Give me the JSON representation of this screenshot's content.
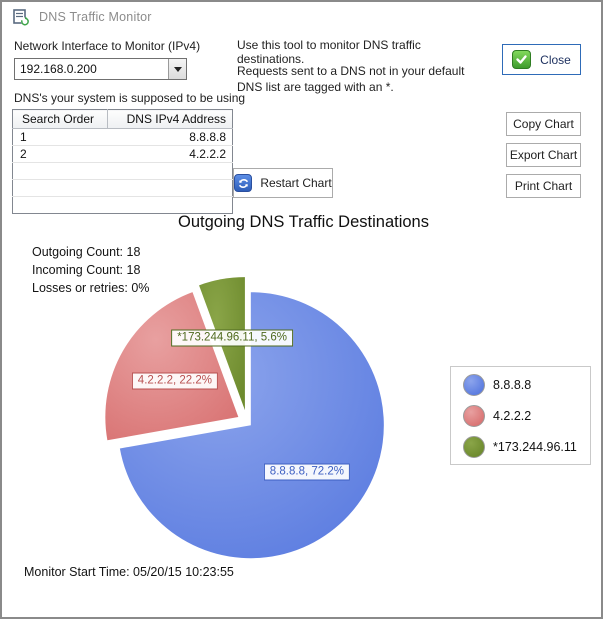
{
  "window": {
    "title": "DNS Traffic Monitor"
  },
  "interface": {
    "label": "Network Interface to Monitor (IPv4)",
    "value": "192.168.0.200"
  },
  "dns_list": {
    "label": "DNS's your system is supposed to be using",
    "columns": [
      "Search Order",
      "DNS IPv4 Address"
    ],
    "rows": [
      [
        "1",
        "8.8.8.8"
      ],
      [
        "2",
        "4.2.2.2"
      ]
    ],
    "empty_rows": 3
  },
  "instructions": {
    "line1": "Use this tool to monitor DNS traffic destinations.",
    "line2": "Requests sent to a DNS not in your default DNS list are tagged with an *."
  },
  "buttons": {
    "close": "Close",
    "copy": "Copy Chart",
    "export": "Export Chart",
    "print": "Print Chart",
    "restart": "Restart Chart"
  },
  "chart_data": {
    "type": "pie",
    "title": "Outgoing DNS Traffic Destinations",
    "stats": [
      "Outgoing Count: 18",
      "Incoming Count: 18",
      "Losses or retries: 0%"
    ],
    "slices": [
      {
        "name": "8.8.8.8",
        "percent": 72.2,
        "color": "#5b7ce0",
        "light": "#8ca4ec",
        "dark": "#3d5fc2"
      },
      {
        "name": "4.2.2.2",
        "percent": 22.2,
        "color": "#d97474",
        "light": "#e8a0a0",
        "dark": "#b85050"
      },
      {
        "name": "*173.244.96.11",
        "percent": 5.6,
        "color": "#6e8b2e",
        "light": "#8aa548",
        "dark": "#4f6a1e"
      }
    ],
    "start_angle_deg": 0,
    "direction": "clockwise",
    "legend_position": "right",
    "footer": "Monitor Start Time: 05/20/15 10:23:55"
  }
}
